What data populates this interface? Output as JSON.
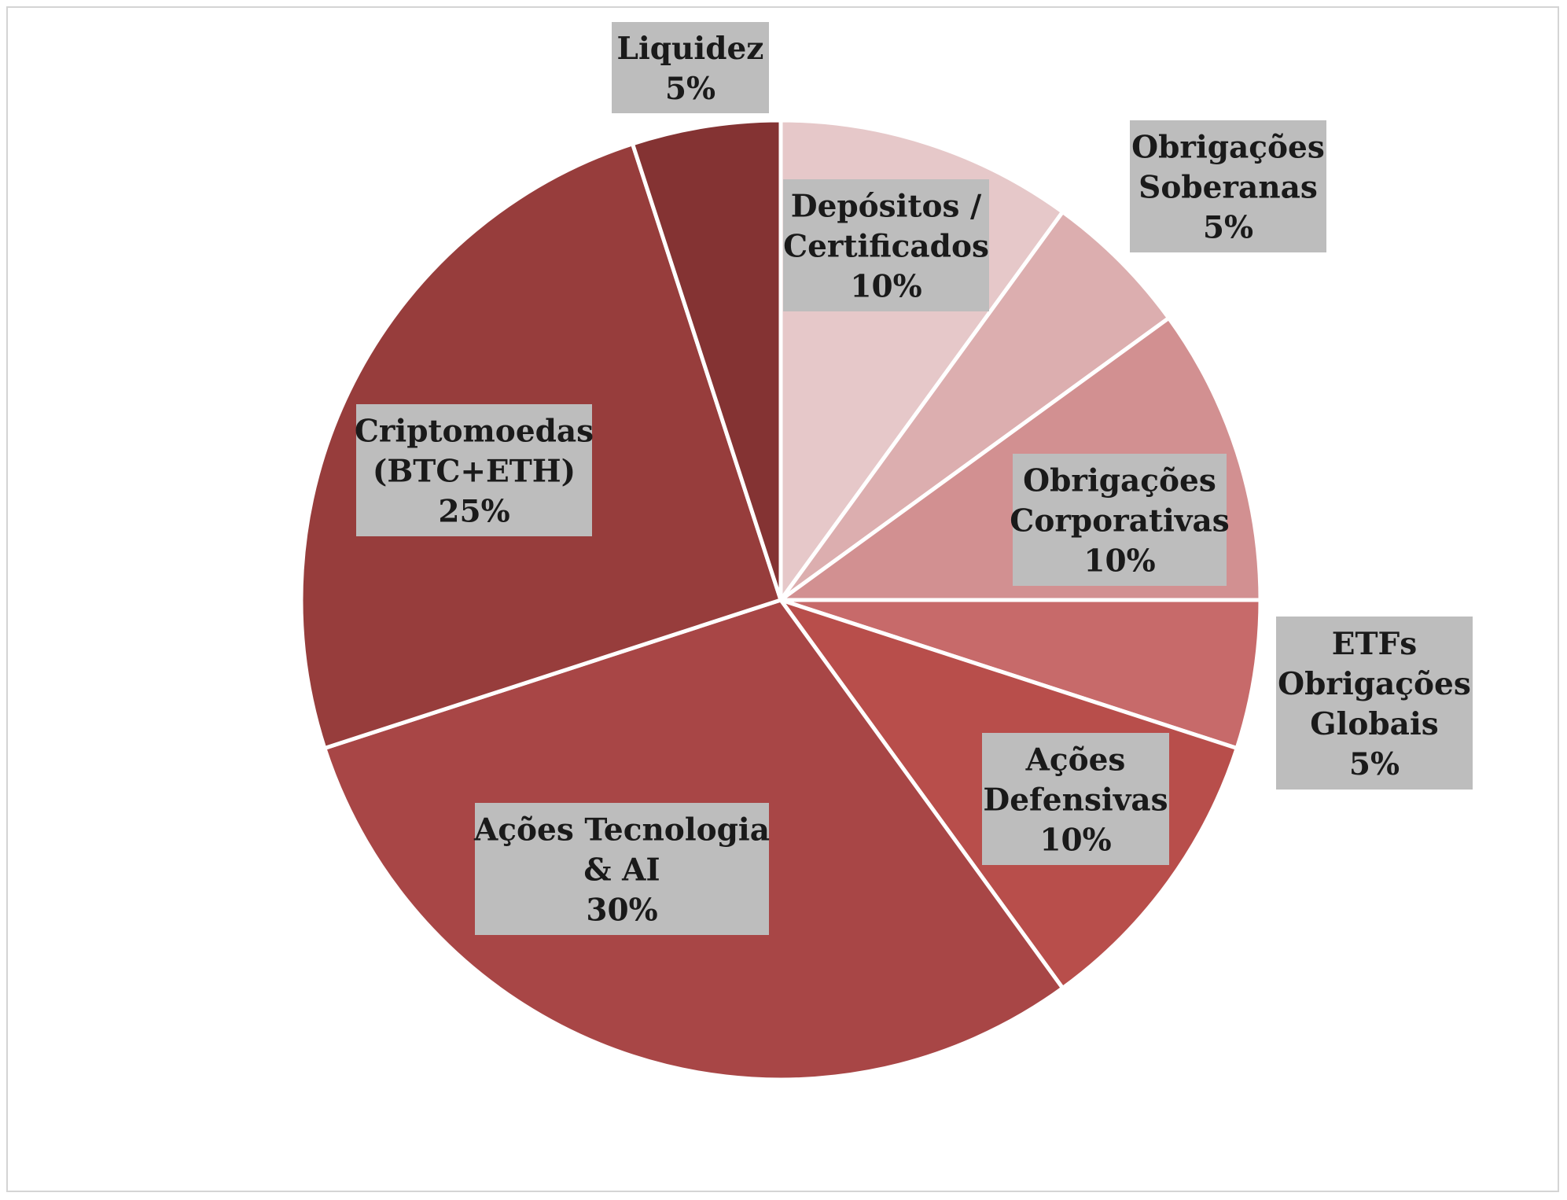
{
  "chart_data": {
    "type": "pie",
    "title": "",
    "start_angle_deg": 0,
    "direction": "clockwise",
    "slices": [
      {
        "label_lines": [
          "Depósitos /",
          "Certificados"
        ],
        "value": 10,
        "value_label": "10%",
        "color": "#e6c8c9"
      },
      {
        "label_lines": [
          "Obrigações",
          "Soberanas"
        ],
        "value": 5,
        "value_label": "5%",
        "color": "#dcaeaf"
      },
      {
        "label_lines": [
          "Obrigações",
          "Corporativas"
        ],
        "value": 10,
        "value_label": "10%",
        "color": "#d29091"
      },
      {
        "label_lines": [
          "ETFs",
          "Obrigações",
          "Globais"
        ],
        "value": 5,
        "value_label": "5%",
        "color": "#c76a6a"
      },
      {
        "label_lines": [
          "Ações",
          "Defensivas"
        ],
        "value": 10,
        "value_label": "10%",
        "color": "#b84e4b"
      },
      {
        "label_lines": [
          "Ações Tecnologia",
          "& AI"
        ],
        "value": 30,
        "value_label": "30%",
        "color": "#a84646"
      },
      {
        "label_lines": [
          "Criptomoedas",
          "(BTC+ETH)"
        ],
        "value": 25,
        "value_label": "25%",
        "color": "#973d3c"
      },
      {
        "label_lines": [
          "Liquidez"
        ],
        "value": 5,
        "value_label": "5%",
        "color": "#843333"
      }
    ],
    "label_background": "#bdbdbd",
    "slice_border_color": "#ffffff"
  }
}
